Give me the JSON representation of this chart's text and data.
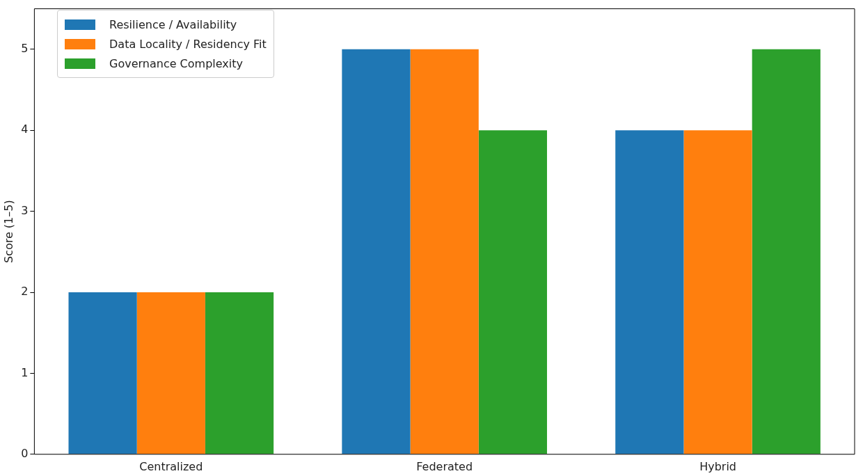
{
  "chart_data": {
    "type": "bar",
    "ylabel": "Score (1–5)",
    "categories": [
      "Centralized",
      "Federated",
      "Hybrid"
    ],
    "series": [
      {
        "name": "Resilience / Availability",
        "color": "#1f77b4",
        "values": [
          2,
          5,
          4
        ]
      },
      {
        "name": "Data Locality / Residency Fit",
        "color": "#ff7f0e",
        "values": [
          2,
          5,
          4
        ]
      },
      {
        "name": "Governance Complexity",
        "color": "#2ca02c",
        "values": [
          2,
          4,
          5
        ]
      }
    ],
    "ylim": [
      0,
      5.5
    ],
    "yticks": [
      0,
      1,
      2,
      3,
      4,
      5
    ],
    "grid": false,
    "legend": "top left"
  }
}
